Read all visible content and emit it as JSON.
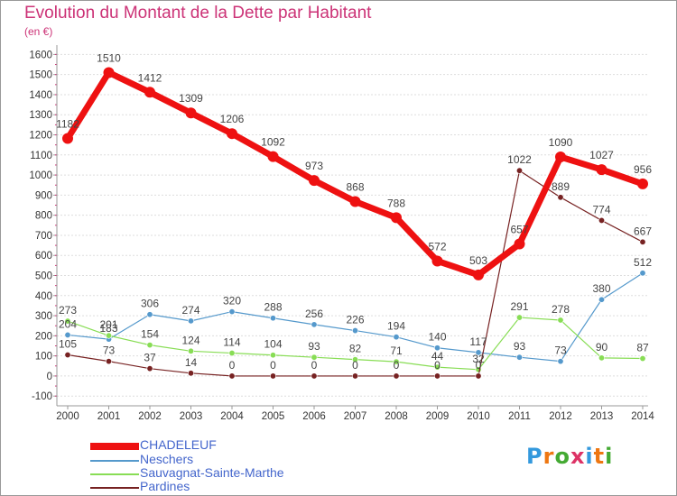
{
  "title": "Evolution du Montant de la Dette par Habitant",
  "unit": "(en €)",
  "logo": "Proxiti",
  "colors": {
    "title": "#cc3377",
    "axis": "#999999",
    "grid": "#dddddd",
    "legend_text": "#4466cc"
  },
  "chart_data": {
    "type": "line",
    "title": "Evolution du Montant de la Dette par Habitant",
    "ylabel": "(en €)",
    "xlabel": "",
    "x": [
      "2000",
      "2001",
      "2002",
      "2003",
      "2004",
      "2005",
      "2006",
      "2007",
      "2008",
      "2009",
      "2010",
      "2011",
      "2012",
      "2013",
      "2014"
    ],
    "yticks": [
      -100,
      0,
      100,
      200,
      300,
      400,
      500,
      600,
      700,
      800,
      900,
      1000,
      1100,
      1200,
      1300,
      1400,
      1500,
      1600
    ],
    "ylim": [
      -100,
      1600
    ],
    "grid": "horizontal",
    "legend_position": "bottom-left",
    "series": [
      {
        "name": "CHADELEUF",
        "color": "#ee1111",
        "width": 7,
        "marker": 6,
        "values": [
          1182,
          1510,
          1412,
          1309,
          1206,
          1092,
          973,
          868,
          788,
          572,
          503,
          657,
          1090,
          1027,
          956
        ],
        "labels": [
          "1182",
          "1510",
          "1412",
          "1309",
          "1206",
          "1092",
          "973",
          "868",
          "788",
          "572",
          "503",
          "657",
          "1090",
          "1027",
          "956"
        ]
      },
      {
        "name": "Neschers",
        "color": "#5599cc",
        "width": 1.2,
        "marker": 3.2,
        "values": [
          204,
          183,
          306,
          274,
          320,
          288,
          256,
          226,
          194,
          140,
          117,
          93,
          73,
          380,
          512
        ],
        "labels": [
          "204",
          "183",
          "306",
          "274",
          "320",
          "288",
          "256",
          "226",
          "194",
          "140",
          "117",
          "93",
          "73",
          "380",
          "512"
        ]
      },
      {
        "name": "Sauvagnat-Sainte-Marthe",
        "color": "#88dd55",
        "width": 1.2,
        "marker": 3.2,
        "values": [
          273,
          201,
          154,
          124,
          114,
          104,
          93,
          82,
          71,
          44,
          32,
          291,
          278,
          90,
          87
        ],
        "labels": [
          "273",
          "201",
          "154",
          "124",
          "114",
          "104",
          "93",
          "82",
          "71",
          "44",
          "32",
          "291",
          "278",
          "90",
          "87"
        ]
      },
      {
        "name": "Pardines",
        "color": "#772222",
        "width": 1.2,
        "marker": 3.2,
        "values": [
          105,
          73,
          37,
          14,
          0,
          0,
          0,
          0,
          0,
          0,
          0,
          1022,
          889,
          774,
          667
        ],
        "labels": [
          "105",
          "73",
          "37",
          "14",
          "0",
          "0",
          "0",
          "0",
          "0",
          "0",
          "0",
          "1022",
          "889",
          "774",
          "667"
        ]
      }
    ]
  }
}
